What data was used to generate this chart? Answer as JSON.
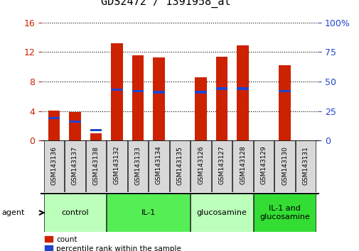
{
  "title": "GDS2472 / 1391958_at",
  "samples": [
    "GSM143136",
    "GSM143137",
    "GSM143138",
    "GSM143132",
    "GSM143133",
    "GSM143134",
    "GSM143135",
    "GSM143126",
    "GSM143127",
    "GSM143128",
    "GSM143129",
    "GSM143130",
    "GSM143131"
  ],
  "counts": [
    4.1,
    3.9,
    1.0,
    13.2,
    11.6,
    11.3,
    0.0,
    8.6,
    11.4,
    12.9,
    0.0,
    10.2,
    0.0
  ],
  "percentile_ranks": [
    19,
    16,
    9,
    43,
    42,
    41,
    0,
    41,
    44,
    44,
    0,
    42,
    0
  ],
  "ylim_left": [
    0,
    16
  ],
  "ylim_right": [
    0,
    100
  ],
  "yticks_left": [
    0,
    4,
    8,
    12,
    16
  ],
  "yticks_right": [
    0,
    25,
    50,
    75,
    100
  ],
  "ytick_right_labels": [
    "0",
    "25",
    "50",
    "75",
    "100%"
  ],
  "bar_color": "#cc2200",
  "percentile_color": "#2244cc",
  "groups": [
    {
      "label": "control",
      "indices": [
        0,
        1,
        2
      ],
      "color": "#bbffbb"
    },
    {
      "label": "IL-1",
      "indices": [
        3,
        4,
        5,
        6
      ],
      "color": "#55ee55"
    },
    {
      "label": "glucosamine",
      "indices": [
        7,
        8,
        9
      ],
      "color": "#bbffbb"
    },
    {
      "label": "IL-1 and\nglucosamine",
      "indices": [
        10,
        11,
        12
      ],
      "color": "#33dd33"
    }
  ],
  "agent_label": "agent",
  "legend_count_label": "count",
  "legend_percentile_label": "percentile rank within the sample",
  "bar_width": 0.55,
  "tick_label_fontsize": 6.5,
  "title_fontsize": 11,
  "bg_color": "#d8d8d8"
}
